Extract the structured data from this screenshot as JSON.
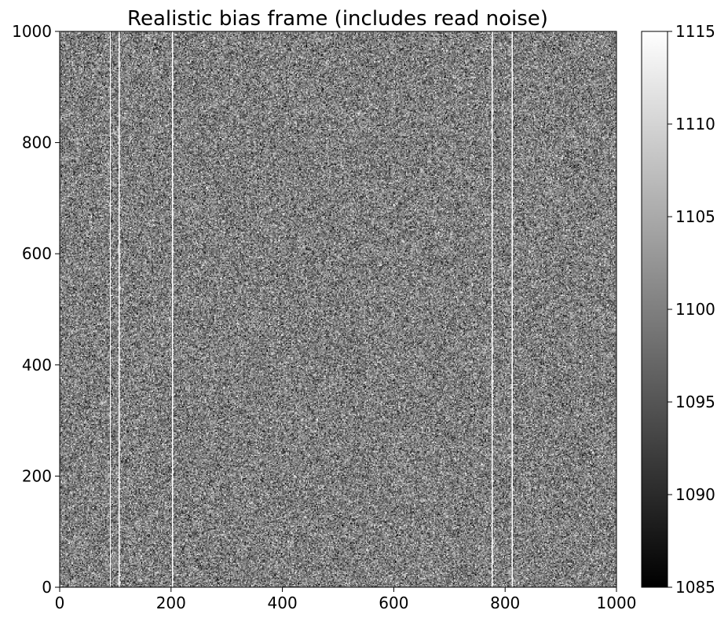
{
  "chart_data": {
    "type": "heatmap",
    "title": "Realistic bias frame (includes read noise)",
    "xlabel": "",
    "ylabel": "",
    "xlim": [
      0,
      1000
    ],
    "ylim": [
      0,
      1000
    ],
    "x_ticks": [
      "0",
      "200",
      "400",
      "600",
      "800",
      "1000"
    ],
    "y_ticks": [
      "0",
      "200",
      "400",
      "600",
      "800",
      "1000"
    ],
    "colormap": "gray",
    "color_range": [
      1085,
      1115
    ],
    "colorbar_ticks": [
      "1085",
      "1090",
      "1095",
      "1100",
      "1105",
      "1110",
      "1115"
    ],
    "bias_level_approx": 1100,
    "hot_columns": [
      90,
      105,
      202,
      775,
      812
    ],
    "grid": false
  }
}
